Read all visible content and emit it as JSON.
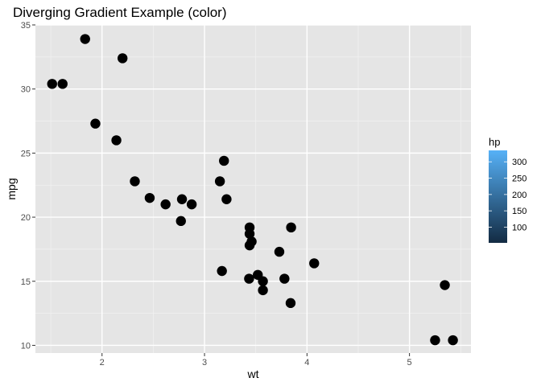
{
  "chart_data": {
    "type": "scatter",
    "title": "Diverging Gradient Example (color)",
    "xlabel": "wt",
    "ylabel": "mpg",
    "xlim": [
      1.35,
      5.6
    ],
    "ylim": [
      9.4,
      35.0
    ],
    "x_ticks": [
      2,
      3,
      4,
      5
    ],
    "y_ticks": [
      10,
      15,
      20,
      25,
      30,
      35
    ],
    "grid": true,
    "background": "#e5e5e5",
    "point_color": "#000000",
    "points": [
      {
        "x": 2.62,
        "y": 21.0
      },
      {
        "x": 2.875,
        "y": 21.0
      },
      {
        "x": 2.32,
        "y": 22.8
      },
      {
        "x": 3.215,
        "y": 21.4
      },
      {
        "x": 3.44,
        "y": 18.7
      },
      {
        "x": 3.46,
        "y": 18.1
      },
      {
        "x": 3.57,
        "y": 14.3
      },
      {
        "x": 3.19,
        "y": 24.4
      },
      {
        "x": 3.15,
        "y": 22.8
      },
      {
        "x": 3.44,
        "y": 19.2
      },
      {
        "x": 3.44,
        "y": 17.8
      },
      {
        "x": 4.07,
        "y": 16.4
      },
      {
        "x": 3.73,
        "y": 17.3
      },
      {
        "x": 3.78,
        "y": 15.2
      },
      {
        "x": 5.25,
        "y": 10.4
      },
      {
        "x": 5.424,
        "y": 10.4
      },
      {
        "x": 5.345,
        "y": 14.7
      },
      {
        "x": 2.2,
        "y": 32.4
      },
      {
        "x": 1.615,
        "y": 30.4
      },
      {
        "x": 1.835,
        "y": 33.9
      },
      {
        "x": 2.465,
        "y": 21.5
      },
      {
        "x": 3.52,
        "y": 15.5
      },
      {
        "x": 3.435,
        "y": 15.2
      },
      {
        "x": 3.84,
        "y": 13.3
      },
      {
        "x": 3.845,
        "y": 19.2
      },
      {
        "x": 1.935,
        "y": 27.3
      },
      {
        "x": 2.14,
        "y": 26.0
      },
      {
        "x": 1.513,
        "y": 30.4
      },
      {
        "x": 3.17,
        "y": 15.8
      },
      {
        "x": 2.77,
        "y": 19.7
      },
      {
        "x": 3.57,
        "y": 15.0
      },
      {
        "x": 2.78,
        "y": 21.4
      }
    ],
    "legend": {
      "title": "hp",
      "position": "right",
      "range": [
        52,
        335
      ],
      "ticks": [
        100,
        150,
        200,
        250,
        300
      ],
      "colors": [
        "#132b43",
        "#56b1f7"
      ]
    }
  }
}
